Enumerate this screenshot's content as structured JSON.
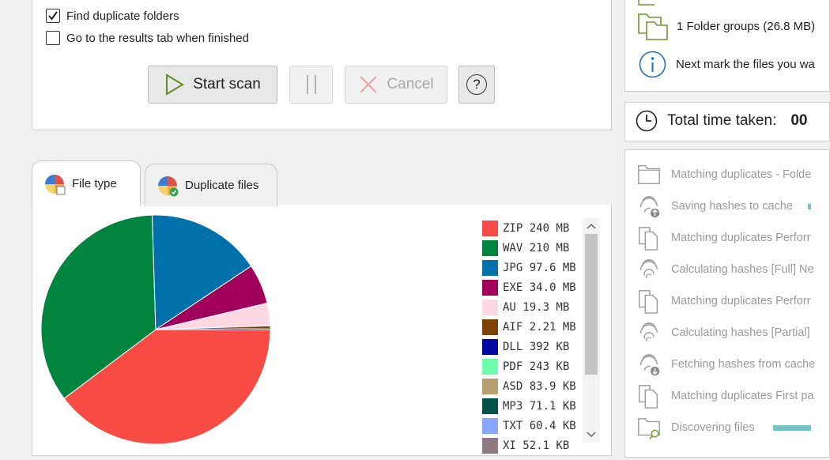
{
  "scan_options": {
    "find_duplicate_folders": {
      "label": "Find duplicate folders",
      "checked": true
    },
    "goto_results": {
      "label": "Go to the results tab when finished",
      "checked": false
    }
  },
  "buttons": {
    "start_scan": "Start scan",
    "cancel": "Cancel",
    "help": "?"
  },
  "tabs": [
    {
      "label": "File type",
      "active": true
    },
    {
      "label": "Duplicate files",
      "active": false
    }
  ],
  "legend": [
    {
      "ext": "ZIP",
      "size": "240 MB",
      "color": "#f84b44"
    },
    {
      "ext": "WAV",
      "size": "210 MB",
      "color": "#01843f"
    },
    {
      "ext": "JPG",
      "size": "97.6 MB",
      "color": "#0071ab"
    },
    {
      "ext": "EXE",
      "size": "34.0 MB",
      "color": "#a0005b"
    },
    {
      "ext": "AU",
      "size": "19.3 MB",
      "color": "#fdd8e3"
    },
    {
      "ext": "AIF",
      "size": "2.21 MB",
      "color": "#7c4400"
    },
    {
      "ext": "DLL",
      "size": "392 KB",
      "color": "#0009a0"
    },
    {
      "ext": "PDF",
      "size": "243 KB",
      "color": "#6effac"
    },
    {
      "ext": "ASD",
      "size": "83.9 KB",
      "color": "#b89f6f"
    },
    {
      "ext": "MP3",
      "size": "71.1 KB",
      "color": "#00514a"
    },
    {
      "ext": "TXT",
      "size": "60.4 KB",
      "color": "#8aa7ff"
    },
    {
      "ext": "XI",
      "size": "52.1 KB",
      "color": "#8f7a84"
    }
  ],
  "summary": {
    "folder_groups": "1 Folder groups (26.8 MB)",
    "next_hint": "Next mark the files you wa",
    "total_time_label": "Total time taken:",
    "total_time_value": "00"
  },
  "steps": [
    {
      "label": "Matching duplicates - Folde",
      "icon": "folder-icon"
    },
    {
      "label": "Saving hashes to cache",
      "icon": "fingerprint-upload-icon",
      "progress": 0.9
    },
    {
      "label": "Matching duplicates Perforr",
      "icon": "documents-icon"
    },
    {
      "label": "Calculating hashes [Full] Ne",
      "icon": "fingerprint-icon"
    },
    {
      "label": "Matching duplicates Perforr",
      "icon": "documents-icon"
    },
    {
      "label": "Calculating hashes [Partial]",
      "icon": "fingerprint-icon"
    },
    {
      "label": "Fetching hashes from cache",
      "icon": "fingerprint-download-icon"
    },
    {
      "label": "Matching duplicates First pa",
      "icon": "documents-icon"
    },
    {
      "label": "Discovering files",
      "icon": "folder-search-icon",
      "progress": 0.5
    }
  ],
  "chart_data": {
    "type": "pie",
    "categories": [
      "ZIP",
      "WAV",
      "JPG",
      "EXE",
      "AU",
      "AIF",
      "DLL",
      "PDF",
      "ASD",
      "MP3",
      "TXT",
      "XI"
    ],
    "values": [
      240,
      210,
      97.6,
      34.0,
      19.3,
      2.21,
      0.392,
      0.243,
      0.0839,
      0.0711,
      0.0604,
      0.0521
    ],
    "units_note": "MB",
    "colors": [
      "#f84b44",
      "#01843f",
      "#0071ab",
      "#a0005b",
      "#fdd8e3",
      "#7c4400",
      "#0009a0",
      "#6effac",
      "#b89f6f",
      "#00514a",
      "#8aa7ff",
      "#8f7a84"
    ]
  }
}
